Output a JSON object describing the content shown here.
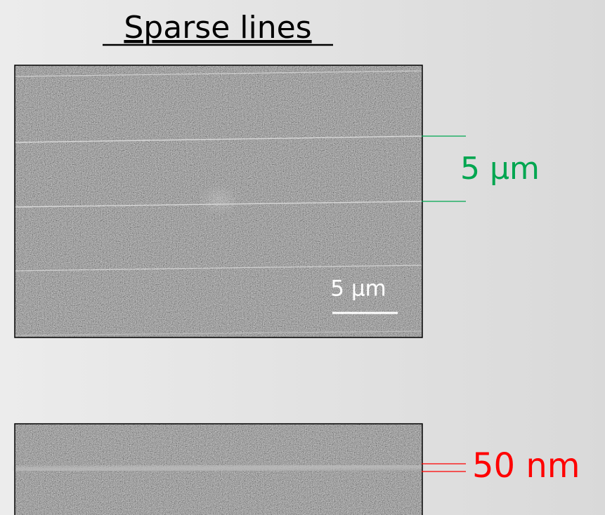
{
  "title": "Sparse lines",
  "annotations": {
    "line_spacing": "5 µm",
    "scale_bar": "5 µm",
    "line_width": "50 nm"
  }
}
